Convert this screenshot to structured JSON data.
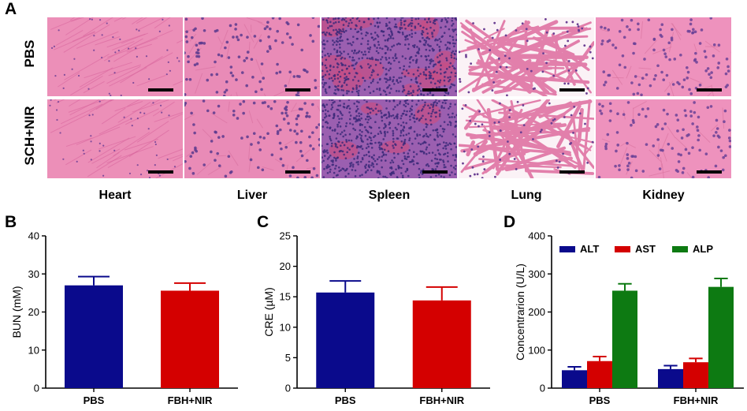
{
  "panel_labels": {
    "a": "A",
    "b": "B",
    "c": "C",
    "d": "D"
  },
  "histology": {
    "rows": [
      "PBS",
      "SCH+NIR"
    ],
    "columns": [
      "Heart",
      "Liver",
      "Spleen",
      "Lung",
      "Kidney"
    ],
    "tissue_colors": {
      "Heart": {
        "base": "#ec8fb8",
        "accent": "#d9679e",
        "nucleus": "#6f3f95"
      },
      "Liver": {
        "base": "#e98bb7",
        "accent": "#d7709f",
        "nucleus": "#5b3a8e"
      },
      "Spleen": {
        "base": "#9b5fb0",
        "accent": "#c74f85",
        "nucleus": "#3d2a7a"
      },
      "Lung": {
        "base": "#fbf2f6",
        "accent": "#e27fab",
        "nucleus": "#6a3f93"
      },
      "Kidney": {
        "base": "#ee92bd",
        "accent": "#d9739f",
        "nucleus": "#6a4197"
      }
    }
  },
  "chart_data": [
    {
      "type": "bar",
      "panel": "B",
      "categories": [
        "PBS",
        "FBH+NIR"
      ],
      "values": [
        27,
        25.6
      ],
      "errors": [
        2.3,
        2.0
      ],
      "colors": [
        "#0a0a8c",
        "#d40000"
      ],
      "ylabel": "BUN (mM)",
      "ylim": [
        0,
        40
      ],
      "yticks": [
        "0",
        "10",
        "20",
        "30",
        "40"
      ],
      "grid": false
    },
    {
      "type": "bar",
      "panel": "C",
      "categories": [
        "PBS",
        "FBH+NIR"
      ],
      "values": [
        15.7,
        14.4
      ],
      "errors": [
        1.9,
        2.2
      ],
      "colors": [
        "#0a0a8c",
        "#d40000"
      ],
      "ylabel": "CRE (µM)",
      "ylim": [
        0,
        25
      ],
      "yticks": [
        "0",
        "5",
        "10",
        "15",
        "20",
        "25"
      ],
      "grid": false
    },
    {
      "type": "bar",
      "panel": "D",
      "categories": [
        "PBS",
        "FBH+NIR"
      ],
      "series": [
        {
          "name": "ALT",
          "values": [
            47,
            50
          ],
          "errors": [
            9,
            9
          ],
          "color": "#0a0a8c"
        },
        {
          "name": "AST",
          "values": [
            71,
            68
          ],
          "errors": [
            12,
            10
          ],
          "color": "#d40000"
        },
        {
          "name": "ALP",
          "values": [
            256,
            266
          ],
          "errors": [
            18,
            22
          ],
          "color": "#0d7a12"
        }
      ],
      "ylabel": "Concentrarion (U/L)",
      "ylim": [
        0,
        400
      ],
      "yticks": [
        "0",
        "100",
        "200",
        "300",
        "400"
      ],
      "legend_position": "top",
      "grid": false
    }
  ]
}
